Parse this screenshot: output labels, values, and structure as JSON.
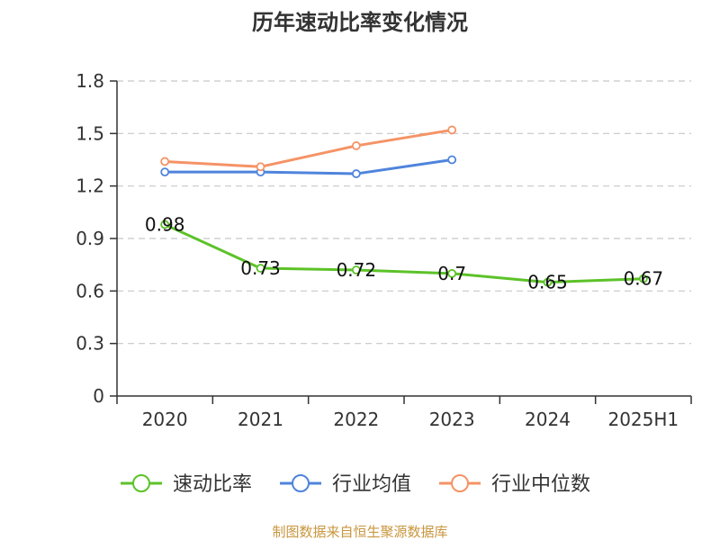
{
  "chart_data": {
    "type": "line",
    "title": "历年速动比率变化情况",
    "categories": [
      "2020",
      "2021",
      "2022",
      "2023",
      "2024",
      "2025H1"
    ],
    "ylim": [
      0,
      1.8
    ],
    "yticks": [
      "0",
      "0.3",
      "0.6",
      "0.9",
      "1.2",
      "1.5",
      "1.8"
    ],
    "grid": true,
    "legend_position": "bottom",
    "series": [
      {
        "name": "速动比率",
        "color": "#5cc228",
        "values": [
          0.98,
          0.73,
          0.72,
          0.7,
          0.65,
          0.67
        ],
        "labels": [
          "0.98",
          "0.73",
          "0.72",
          "0.7",
          "0.65",
          "0.67"
        ]
      },
      {
        "name": "行业均值",
        "color": "#4f84dc",
        "values": [
          1.28,
          1.28,
          1.27,
          1.35,
          null,
          null
        ]
      },
      {
        "name": "行业中位数",
        "color": "#f59366",
        "values": [
          1.34,
          1.31,
          1.43,
          1.52,
          null,
          null
        ]
      }
    ]
  },
  "source_text": "制图数据来自恒生聚源数据库"
}
